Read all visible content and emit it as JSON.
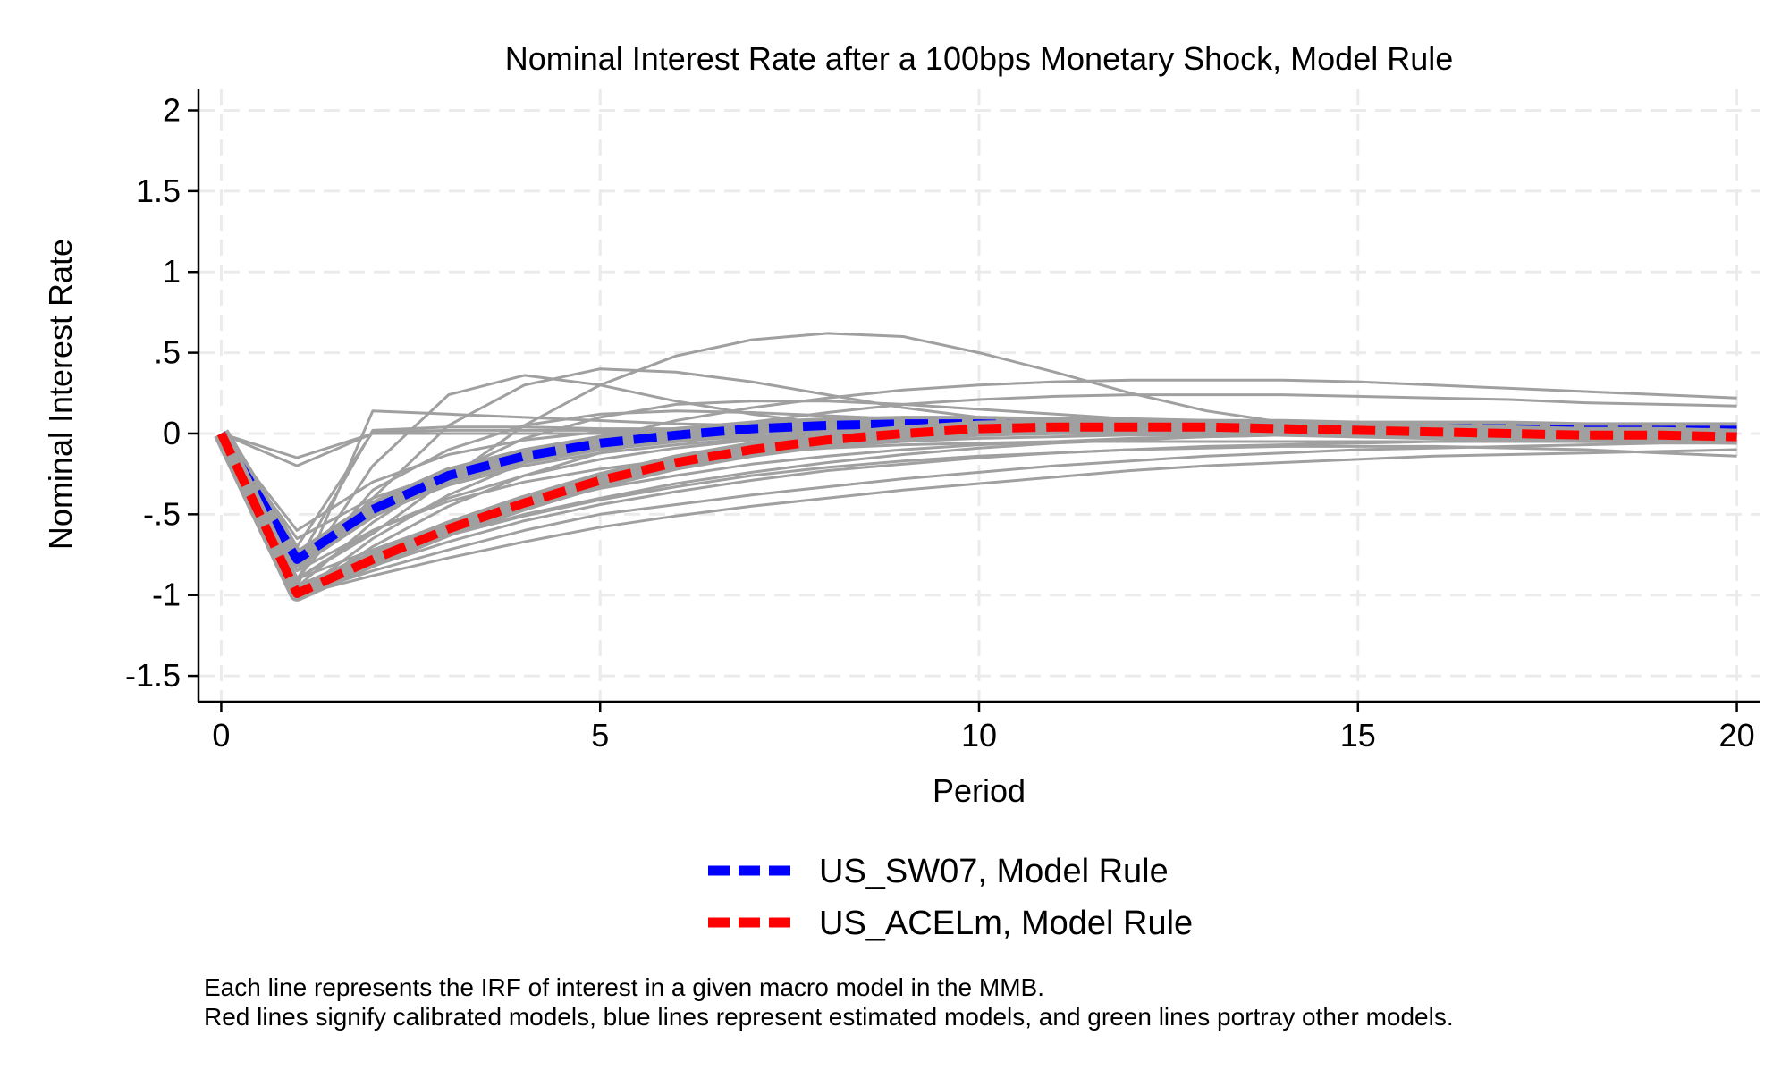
{
  "chart_data": {
    "type": "line",
    "title": "Nominal Interest Rate after a 100bps Monetary Shock, Model Rule",
    "xlabel": "Period",
    "ylabel": "Nominal Interest Rate",
    "xlim": [
      -0.3,
      20.3
    ],
    "ylim": [
      -1.66,
      2.13
    ],
    "xticks": [
      0,
      5,
      10,
      15,
      20
    ],
    "yticks": [
      2,
      1.5,
      1,
      0.5,
      0,
      -0.5,
      -1,
      -1.5
    ],
    "ytick_labels": [
      "2",
      "1.5",
      "1",
      ".5",
      "0",
      "-.5",
      "-1",
      "-1.5"
    ],
    "grid": true,
    "legend_position": "bottom-center",
    "highlight_series": [
      {
        "name": "US_SW07, Model Rule",
        "color": "#0000ff",
        "x": [
          0,
          1,
          2,
          3,
          4,
          5,
          6,
          7,
          8,
          9,
          10,
          11,
          12,
          13,
          14,
          15,
          16,
          17,
          18,
          19,
          20
        ],
        "values": [
          0,
          -0.78,
          -0.47,
          -0.26,
          -0.14,
          -0.06,
          -0.01,
          0.03,
          0.05,
          0.06,
          0.06,
          0.05,
          0.05,
          0.04,
          0.04,
          0.03,
          0.03,
          0.03,
          0.02,
          0.02,
          0.02
        ]
      },
      {
        "name": "US_ACELm, Model Rule",
        "color": "#ff0000",
        "x": [
          0,
          1,
          2,
          3,
          4,
          5,
          6,
          7,
          8,
          9,
          10,
          11,
          12,
          13,
          14,
          15,
          16,
          17,
          18,
          19,
          20
        ],
        "values": [
          0,
          -0.99,
          -0.78,
          -0.59,
          -0.43,
          -0.29,
          -0.18,
          -0.1,
          -0.04,
          0.0,
          0.03,
          0.04,
          0.04,
          0.04,
          0.03,
          0.02,
          0.01,
          0.0,
          -0.01,
          -0.01,
          -0.02
        ]
      }
    ],
    "background_series_color": "#a0a0a0",
    "background_series": [
      {
        "x": [
          0,
          1,
          2,
          3,
          4,
          5,
          6,
          7,
          8,
          9,
          10,
          11,
          12,
          13,
          14,
          15,
          16,
          17,
          18,
          19,
          20
        ],
        "values": [
          0,
          -0.9,
          -0.62,
          -0.28,
          0.05,
          0.3,
          0.48,
          0.58,
          0.62,
          0.6,
          0.5,
          0.38,
          0.25,
          0.14,
          0.07,
          0.03,
          0.01,
          0.0,
          -0.01,
          -0.01,
          -0.02
        ]
      },
      {
        "x": [
          0,
          1,
          2,
          3,
          4,
          5,
          6,
          7,
          8,
          9,
          10,
          11,
          12,
          13,
          14,
          15,
          16,
          17,
          18,
          19,
          20
        ],
        "values": [
          0,
          -0.85,
          -0.4,
          0.05,
          0.3,
          0.4,
          0.38,
          0.32,
          0.24,
          0.16,
          0.1,
          0.06,
          0.04,
          0.02,
          0.01,
          0.0,
          0.0,
          0.0,
          0.0,
          0.0,
          0.0
        ]
      },
      {
        "x": [
          0,
          1,
          2,
          3,
          4,
          5,
          6,
          7,
          8,
          9,
          10,
          11,
          12,
          13,
          14,
          15,
          16,
          17,
          18,
          19,
          20
        ],
        "values": [
          0,
          -0.9,
          -0.2,
          0.24,
          0.36,
          0.3,
          0.2,
          0.12,
          0.06,
          0.03,
          0.01,
          0.0,
          0.0,
          0.0,
          0.0,
          0.0,
          0.0,
          0.0,
          0.0,
          0.0,
          0.0
        ]
      },
      {
        "x": [
          0,
          1,
          2,
          3,
          4,
          5,
          6,
          7,
          8,
          9,
          10,
          11,
          12,
          13,
          14,
          15,
          16,
          17,
          18,
          19,
          20
        ],
        "values": [
          0,
          -0.95,
          0.14,
          0.12,
          0.1,
          0.08,
          0.06,
          0.05,
          0.04,
          0.03,
          0.03,
          0.02,
          0.02,
          0.02,
          0.01,
          0.01,
          0.01,
          0.01,
          0.0,
          0.0,
          0.0
        ]
      },
      {
        "x": [
          0,
          1,
          2,
          3,
          4,
          5,
          6,
          7,
          8,
          9,
          10,
          11,
          12,
          13,
          14,
          15,
          16,
          17,
          18,
          19,
          20
        ],
        "values": [
          0,
          -0.8,
          0.02,
          0.04,
          0.04,
          0.03,
          0.03,
          0.02,
          0.02,
          0.01,
          0.01,
          0.01,
          0.0,
          0.0,
          0.0,
          0.0,
          0.0,
          0.0,
          0.0,
          0.0,
          0.0
        ]
      },
      {
        "x": [
          0,
          1,
          2,
          3,
          4,
          5,
          6,
          7,
          8,
          9,
          10,
          11,
          12,
          13,
          14,
          15,
          16,
          17,
          18,
          19,
          20
        ],
        "values": [
          0,
          -0.7,
          0.01,
          0.02,
          0.02,
          0.02,
          0.01,
          0.01,
          0.01,
          0.0,
          0.0,
          0.0,
          0.0,
          0.0,
          0.0,
          0.0,
          0.0,
          0.0,
          0.0,
          0.0,
          0.0
        ]
      },
      {
        "x": [
          0,
          1,
          2,
          3,
          4,
          5,
          6,
          7,
          8,
          9,
          10,
          11,
          12,
          13,
          14,
          15,
          16,
          17,
          18,
          19,
          20
        ],
        "values": [
          0,
          -0.2,
          0.0,
          0.0,
          0.0,
          0.0,
          0.0,
          0.0,
          0.0,
          0.0,
          0.0,
          0.0,
          0.0,
          0.0,
          0.0,
          0.0,
          0.0,
          0.0,
          0.0,
          0.0,
          0.0
        ]
      },
      {
        "x": [
          0,
          1,
          2,
          3,
          4,
          5,
          6,
          7,
          8,
          9,
          10,
          11,
          12,
          13,
          14,
          15,
          16,
          17,
          18,
          19,
          20
        ],
        "values": [
          0,
          -0.15,
          0.0,
          0.0,
          0.0,
          0.0,
          0.0,
          0.0,
          0.0,
          0.0,
          0.0,
          0.0,
          0.0,
          0.0,
          0.0,
          0.0,
          0.0,
          0.0,
          0.0,
          0.0,
          0.0
        ]
      },
      {
        "x": [
          0,
          1,
          2,
          3,
          4,
          5,
          6,
          7,
          8,
          9,
          10,
          11,
          12,
          13,
          14,
          15,
          16,
          17,
          18,
          19,
          20
        ],
        "values": [
          0,
          -0.9,
          -0.35,
          -0.1,
          0.05,
          0.12,
          0.14,
          0.13,
          0.11,
          0.09,
          0.07,
          0.05,
          0.04,
          0.03,
          0.02,
          0.02,
          0.01,
          0.01,
          0.01,
          0.0,
          0.0
        ]
      },
      {
        "x": [
          0,
          1,
          2,
          3,
          4,
          5,
          6,
          7,
          8,
          9,
          10,
          11,
          12,
          13,
          14,
          15,
          16,
          17,
          18,
          19,
          20
        ],
        "values": [
          0,
          -0.95,
          -0.55,
          -0.25,
          -0.03,
          0.1,
          0.18,
          0.2,
          0.2,
          0.18,
          0.15,
          0.12,
          0.09,
          0.07,
          0.05,
          0.03,
          0.02,
          0.01,
          0.01,
          0.0,
          0.0
        ]
      },
      {
        "x": [
          0,
          1,
          2,
          3,
          4,
          5,
          6,
          7,
          8,
          9,
          10,
          11,
          12,
          13,
          14,
          15,
          16,
          17,
          18,
          19,
          20
        ],
        "values": [
          0,
          -1.0,
          -0.65,
          -0.38,
          -0.18,
          -0.03,
          0.08,
          0.16,
          0.22,
          0.27,
          0.3,
          0.32,
          0.33,
          0.33,
          0.33,
          0.32,
          0.3,
          0.28,
          0.26,
          0.24,
          0.22
        ]
      },
      {
        "x": [
          0,
          1,
          2,
          3,
          4,
          5,
          6,
          7,
          8,
          9,
          10,
          11,
          12,
          13,
          14,
          15,
          16,
          17,
          18,
          19,
          20
        ],
        "values": [
          0,
          -1.0,
          -0.7,
          -0.45,
          -0.26,
          -0.12,
          -0.01,
          0.07,
          0.13,
          0.18,
          0.21,
          0.23,
          0.24,
          0.24,
          0.24,
          0.23,
          0.22,
          0.21,
          0.19,
          0.18,
          0.17
        ]
      },
      {
        "x": [
          0,
          1,
          2,
          3,
          4,
          5,
          6,
          7,
          8,
          9,
          10,
          11,
          12,
          13,
          14,
          15,
          16,
          17,
          18,
          19,
          20
        ],
        "values": [
          0,
          -0.6,
          -0.3,
          -0.13,
          -0.04,
          0.01,
          0.03,
          0.04,
          0.04,
          0.04,
          0.04,
          0.03,
          0.03,
          0.03,
          0.02,
          0.02,
          0.02,
          0.02,
          0.01,
          0.01,
          0.01
        ]
      },
      {
        "x": [
          0,
          1,
          2,
          3,
          4,
          5,
          6,
          7,
          8,
          9,
          10,
          11,
          12,
          13,
          14,
          15,
          16,
          17,
          18,
          19,
          20
        ],
        "values": [
          0,
          -0.9,
          -0.6,
          -0.4,
          -0.26,
          -0.16,
          -0.09,
          -0.04,
          -0.01,
          0.01,
          0.02,
          0.03,
          0.03,
          0.03,
          0.03,
          0.03,
          0.02,
          0.02,
          0.02,
          0.02,
          0.02
        ]
      },
      {
        "x": [
          0,
          1,
          2,
          3,
          4,
          5,
          6,
          7,
          8,
          9,
          10,
          11,
          12,
          13,
          14,
          15,
          16,
          17,
          18,
          19,
          20
        ],
        "values": [
          0,
          -0.95,
          -0.75,
          -0.58,
          -0.45,
          -0.34,
          -0.26,
          -0.19,
          -0.14,
          -0.1,
          -0.07,
          -0.05,
          -0.03,
          -0.02,
          -0.01,
          0.0,
          0.0,
          0.01,
          0.01,
          0.01,
          0.01
        ]
      },
      {
        "x": [
          0,
          1,
          2,
          3,
          4,
          5,
          6,
          7,
          8,
          9,
          10,
          11,
          12,
          13,
          14,
          15,
          16,
          17,
          18,
          19,
          20
        ],
        "values": [
          0,
          -1.0,
          -0.85,
          -0.72,
          -0.6,
          -0.5,
          -0.44,
          -0.38,
          -0.33,
          -0.28,
          -0.24,
          -0.2,
          -0.17,
          -0.14,
          -0.12,
          -0.1,
          -0.09,
          -0.08,
          -0.07,
          -0.06,
          -0.06
        ]
      },
      {
        "x": [
          0,
          1,
          2,
          3,
          4,
          5,
          6,
          7,
          8,
          9,
          10,
          11,
          12,
          13,
          14,
          15,
          16,
          17,
          18,
          19,
          20
        ],
        "values": [
          0,
          -1.0,
          -0.88,
          -0.77,
          -0.67,
          -0.58,
          -0.51,
          -0.45,
          -0.4,
          -0.35,
          -0.31,
          -0.27,
          -0.23,
          -0.2,
          -0.18,
          -0.16,
          -0.14,
          -0.13,
          -0.12,
          -0.11,
          -0.1
        ]
      },
      {
        "x": [
          0,
          1,
          2,
          3,
          4,
          5,
          6,
          7,
          8,
          9,
          10,
          11,
          12,
          13,
          14,
          15,
          16,
          17,
          18,
          19,
          20
        ],
        "values": [
          0,
          -0.95,
          -0.78,
          -0.63,
          -0.51,
          -0.41,
          -0.33,
          -0.26,
          -0.21,
          -0.17,
          -0.14,
          -0.12,
          -0.1,
          -0.09,
          -0.08,
          -0.08,
          -0.08,
          -0.09,
          -0.1,
          -0.12,
          -0.14
        ]
      },
      {
        "x": [
          0,
          1,
          2,
          3,
          4,
          5,
          6,
          7,
          8,
          9,
          10,
          11,
          12,
          13,
          14,
          15,
          16,
          17,
          18,
          19,
          20
        ],
        "values": [
          0,
          -0.85,
          -0.6,
          -0.42,
          -0.3,
          -0.22,
          -0.16,
          -0.12,
          -0.09,
          -0.07,
          -0.06,
          -0.05,
          -0.05,
          -0.05,
          -0.05,
          -0.05,
          -0.05,
          -0.05,
          -0.05,
          -0.05,
          -0.05
        ]
      },
      {
        "x": [
          0,
          1,
          2,
          3,
          4,
          5,
          6,
          7,
          8,
          9,
          10,
          11,
          12,
          13,
          14,
          15,
          16,
          17,
          18,
          19,
          20
        ],
        "values": [
          0,
          -0.9,
          -0.72,
          -0.55,
          -0.41,
          -0.29,
          -0.2,
          -0.13,
          -0.08,
          -0.05,
          -0.03,
          -0.02,
          -0.01,
          -0.01,
          -0.01,
          -0.02,
          -0.02,
          -0.03,
          -0.03,
          -0.04,
          -0.04
        ]
      },
      {
        "x": [
          0,
          1,
          2,
          3,
          4,
          5,
          6,
          7,
          8,
          9,
          10,
          11,
          12,
          13,
          14,
          15,
          16,
          17,
          18,
          19,
          20
        ],
        "values": [
          0,
          -1.02,
          -0.8,
          -0.63,
          -0.5,
          -0.4,
          -0.31,
          -0.24,
          -0.18,
          -0.13,
          -0.09,
          -0.06,
          -0.04,
          -0.02,
          -0.01,
          0.0,
          0.0,
          0.01,
          0.01,
          0.01,
          0.01
        ]
      },
      {
        "x": [
          0,
          1,
          2,
          3,
          4,
          5,
          6,
          7,
          8,
          9,
          10,
          11,
          12,
          13,
          14,
          15,
          16,
          17,
          18,
          19,
          20
        ],
        "values": [
          0,
          -0.75,
          -0.5,
          -0.32,
          -0.2,
          -0.12,
          -0.07,
          -0.03,
          -0.01,
          0.01,
          0.02,
          0.02,
          0.02,
          0.02,
          0.02,
          0.02,
          0.02,
          0.01,
          0.01,
          0.01,
          0.01
        ]
      },
      {
        "x": [
          0,
          1,
          2,
          3,
          4,
          5,
          6,
          7,
          8,
          9,
          10,
          11,
          12,
          13,
          14,
          15,
          16,
          17,
          18,
          19,
          20
        ],
        "values": [
          0,
          -0.65,
          -0.4,
          -0.24,
          -0.14,
          -0.08,
          -0.04,
          -0.02,
          0.0,
          0.01,
          0.01,
          0.01,
          0.01,
          0.01,
          0.01,
          0.01,
          0.01,
          0.01,
          0.01,
          0.0,
          0.0
        ]
      },
      {
        "x": [
          0,
          1,
          2,
          3,
          4,
          5,
          6,
          7,
          8,
          9,
          10,
          11,
          12,
          13,
          14,
          15,
          16,
          17,
          18,
          19,
          20
        ],
        "values": [
          0,
          -1.0,
          -0.82,
          -0.67,
          -0.54,
          -0.44,
          -0.36,
          -0.29,
          -0.23,
          -0.19,
          -0.15,
          -0.12,
          -0.1,
          -0.08,
          -0.07,
          -0.06,
          -0.05,
          -0.05,
          -0.05,
          -0.05,
          -0.06
        ]
      }
    ],
    "legend": [
      {
        "label": "US_SW07, Model Rule",
        "color": "#0000ff"
      },
      {
        "label": "US_ACELm, Model Rule",
        "color": "#ff0000"
      }
    ],
    "notes": [
      "Each line represents the IRF of interest in a given macro model in the MMB.",
      "Red lines signify calibrated models, blue lines represent estimated models, and green lines portray other models."
    ]
  }
}
